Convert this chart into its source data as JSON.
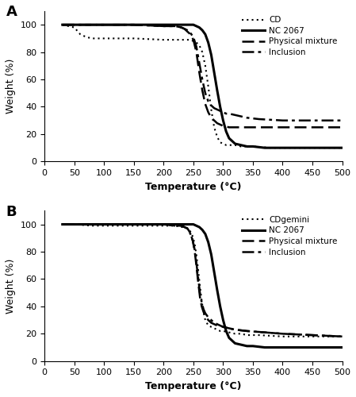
{
  "panel_A": {
    "title": "A",
    "xlabel": "Temperature (°C)",
    "ylabel": "Weight (%)",
    "xlim": [
      0,
      500
    ],
    "ylim": [
      0,
      110
    ],
    "xticks": [
      0,
      50,
      100,
      150,
      200,
      250,
      300,
      350,
      400,
      450,
      500
    ],
    "yticks": [
      0,
      20,
      40,
      60,
      80,
      100
    ],
    "series": {
      "CD": {
        "style": "dotted",
        "color": "#000000",
        "linewidth": 1.5,
        "x": [
          30,
          50,
          60,
          70,
          80,
          90,
          100,
          150,
          200,
          230,
          240,
          245,
          250,
          255,
          260,
          265,
          270,
          275,
          280,
          285,
          290,
          295,
          300,
          305,
          310,
          320,
          330,
          350,
          380,
          420,
          470,
          500
        ],
        "y": [
          100,
          98,
          93,
          91,
          90,
          90,
          90,
          90,
          89,
          89,
          89,
          89,
          88,
          87,
          85,
          80,
          70,
          55,
          38,
          25,
          18,
          14,
          13,
          12,
          12,
          12,
          11,
          11,
          10,
          10,
          10,
          10
        ]
      },
      "NC2067": {
        "style": "solid",
        "color": "#000000",
        "linewidth": 2.2,
        "x": [
          30,
          50,
          100,
          150,
          200,
          240,
          250,
          255,
          260,
          265,
          270,
          275,
          280,
          285,
          290,
          295,
          300,
          305,
          310,
          320,
          330,
          340,
          350,
          370,
          400,
          430,
          460,
          490,
          500
        ],
        "y": [
          100,
          100,
          100,
          100,
          100,
          100,
          100,
          99,
          98,
          96,
          93,
          87,
          78,
          65,
          52,
          40,
          30,
          22,
          17,
          13,
          12,
          11,
          11,
          10,
          10,
          10,
          10,
          10,
          10
        ]
      },
      "Physical_mixture": {
        "style": "dashed",
        "color": "#000000",
        "linewidth": 1.8,
        "x": [
          30,
          50,
          100,
          150,
          200,
          220,
          230,
          235,
          240,
          245,
          250,
          255,
          260,
          265,
          270,
          275,
          280,
          285,
          290,
          295,
          300,
          310,
          320,
          340,
          360,
          400,
          450,
          500
        ],
        "y": [
          100,
          100,
          100,
          100,
          99,
          99,
          98,
          97,
          95,
          93,
          89,
          80,
          65,
          52,
          42,
          36,
          32,
          30,
          28,
          27,
          26,
          25,
          25,
          25,
          25,
          25,
          25,
          25
        ]
      },
      "Inclusion": {
        "style": "dashdot",
        "color": "#000000",
        "linewidth": 1.8,
        "x": [
          30,
          50,
          100,
          150,
          200,
          220,
          230,
          235,
          240,
          245,
          250,
          255,
          260,
          265,
          270,
          275,
          280,
          285,
          290,
          295,
          300,
          305,
          310,
          320,
          340,
          360,
          400,
          450,
          500
        ],
        "y": [
          100,
          100,
          100,
          100,
          99,
          99,
          98,
          97,
          96,
          94,
          91,
          84,
          72,
          60,
          50,
          44,
          41,
          39,
          38,
          37,
          36,
          35,
          35,
          34,
          32,
          31,
          30,
          30,
          30
        ]
      }
    },
    "legend": {
      "CD": "CD",
      "NC2067": "NC 2067",
      "Physical_mixture": "Physical mixture",
      "Inclusion": "Inclusion"
    }
  },
  "panel_B": {
    "title": "B",
    "xlabel": "Temperature (°C)",
    "ylabel": "Weight (%)",
    "xlim": [
      0,
      500
    ],
    "ylim": [
      0,
      110
    ],
    "xticks": [
      0,
      50,
      100,
      150,
      200,
      250,
      300,
      350,
      400,
      450,
      500
    ],
    "yticks": [
      0,
      20,
      40,
      60,
      80,
      100
    ],
    "series": {
      "CDgemini": {
        "style": "dotted",
        "color": "#000000",
        "linewidth": 1.5,
        "x": [
          30,
          50,
          80,
          100,
          130,
          150,
          180,
          200,
          220,
          230,
          235,
          240,
          243,
          246,
          249,
          252,
          255,
          258,
          261,
          264,
          267,
          270,
          275,
          280,
          285,
          290,
          295,
          300,
          310,
          320,
          330,
          340,
          360,
          400,
          450,
          500
        ],
        "y": [
          100,
          100,
          99,
          99,
          99,
          99,
          99,
          99,
          99,
          98,
          98,
          97,
          96,
          94,
          91,
          86,
          78,
          67,
          55,
          44,
          36,
          30,
          26,
          25,
          24,
          23,
          22,
          22,
          21,
          20,
          20,
          19,
          19,
          18,
          18,
          18
        ]
      },
      "NC2067": {
        "style": "solid",
        "color": "#000000",
        "linewidth": 2.2,
        "x": [
          30,
          50,
          100,
          150,
          200,
          240,
          250,
          255,
          260,
          265,
          270,
          275,
          280,
          285,
          290,
          295,
          300,
          305,
          310,
          320,
          330,
          340,
          350,
          370,
          400,
          430,
          460,
          490,
          500
        ],
        "y": [
          100,
          100,
          100,
          100,
          100,
          100,
          100,
          99,
          98,
          96,
          93,
          87,
          78,
          65,
          52,
          40,
          30,
          22,
          17,
          13,
          12,
          11,
          11,
          10,
          10,
          10,
          10,
          10,
          10
        ]
      },
      "Physical_mixture": {
        "style": "dashed",
        "color": "#000000",
        "linewidth": 1.8,
        "x": [
          30,
          50,
          100,
          150,
          200,
          220,
          230,
          235,
          240,
          243,
          246,
          249,
          252,
          255,
          258,
          261,
          264,
          267,
          270,
          275,
          280,
          285,
          290,
          295,
          300,
          310,
          320,
          340,
          370,
          400,
          450,
          500
        ],
        "y": [
          100,
          100,
          100,
          100,
          100,
          99,
          99,
          98,
          97,
          95,
          92,
          88,
          81,
          70,
          58,
          47,
          40,
          36,
          33,
          30,
          28,
          27,
          26,
          26,
          25,
          24,
          23,
          22,
          21,
          20,
          19,
          18
        ]
      },
      "Inclusion": {
        "style": "dashdot",
        "color": "#000000",
        "linewidth": 1.8,
        "x": [
          30,
          50,
          100,
          150,
          200,
          220,
          230,
          235,
          240,
          243,
          246,
          249,
          252,
          255,
          258,
          261,
          264,
          267,
          270,
          275,
          280,
          285,
          290,
          295,
          300,
          310,
          320,
          340,
          370,
          400,
          450,
          500
        ],
        "y": [
          100,
          100,
          100,
          100,
          100,
          99,
          99,
          98,
          97,
          95,
          92,
          88,
          82,
          72,
          61,
          50,
          43,
          38,
          35,
          32,
          30,
          28,
          27,
          26,
          25,
          24,
          23,
          22,
          21,
          20,
          19,
          18
        ]
      }
    },
    "legend": {
      "CDgemini": "CDgemini",
      "NC2067": "NC 2067",
      "Physical_mixture": "Physical mixture",
      "Inclusion": "Inclusion"
    }
  }
}
